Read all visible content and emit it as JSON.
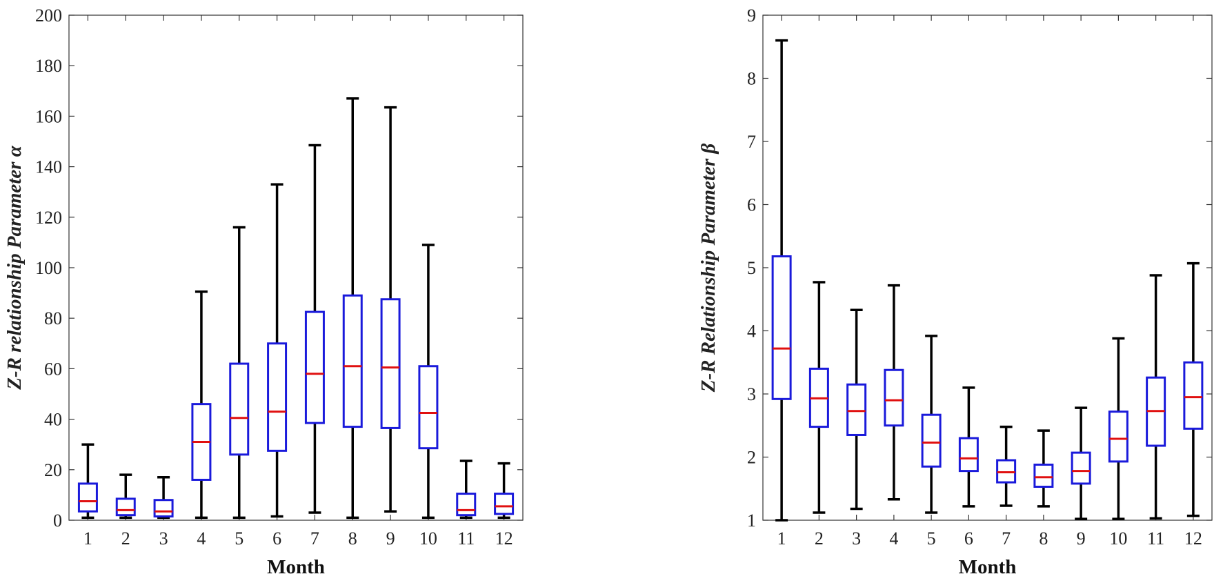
{
  "colors": {
    "box": "#1a1adb",
    "median": "#e01010",
    "whisker": "#000000",
    "axis": "#333333"
  },
  "chart_data": [
    {
      "type": "box",
      "xlabel": "Month",
      "ylabel": "Z-R relationship Parameter α",
      "ylim": [
        0,
        200
      ],
      "yticks": [
        "0",
        "20",
        "40",
        "60",
        "80",
        "100",
        "120",
        "140",
        "160",
        "180",
        "200"
      ],
      "categories": [
        "1",
        "2",
        "3",
        "4",
        "5",
        "6",
        "7",
        "8",
        "9",
        "10",
        "11",
        "12"
      ],
      "boxes": [
        {
          "min": 1,
          "q1": 3.5,
          "median": 7.5,
          "q3": 14.5,
          "max": 30
        },
        {
          "min": 1,
          "q1": 2,
          "median": 4,
          "q3": 8.5,
          "max": 18
        },
        {
          "min": 1,
          "q1": 1.5,
          "median": 3.5,
          "q3": 8,
          "max": 17
        },
        {
          "min": 1,
          "q1": 16,
          "median": 31,
          "q3": 46,
          "max": 90.5
        },
        {
          "min": 1,
          "q1": 26,
          "median": 40.5,
          "q3": 62,
          "max": 116
        },
        {
          "min": 1.5,
          "q1": 27.5,
          "median": 43,
          "q3": 70,
          "max": 133
        },
        {
          "min": 3,
          "q1": 38.5,
          "median": 58,
          "q3": 82.5,
          "max": 148.5
        },
        {
          "min": 1,
          "q1": 37,
          "median": 61,
          "q3": 89,
          "max": 167
        },
        {
          "min": 3.5,
          "q1": 36.5,
          "median": 60.5,
          "q3": 87.5,
          "max": 163.5
        },
        {
          "min": 1,
          "q1": 28.5,
          "median": 42.5,
          "q3": 61,
          "max": 109
        },
        {
          "min": 1,
          "q1": 2,
          "median": 4,
          "q3": 10.5,
          "max": 23.5
        },
        {
          "min": 1,
          "q1": 2.5,
          "median": 5.5,
          "q3": 10.5,
          "max": 22.5
        }
      ]
    },
    {
      "type": "box",
      "xlabel": "Month",
      "ylabel": "Z-R Relationship Parameter β",
      "ylim": [
        1,
        9
      ],
      "yticks": [
        "1",
        "2",
        "3",
        "4",
        "5",
        "6",
        "7",
        "8",
        "9"
      ],
      "categories": [
        "1",
        "2",
        "3",
        "4",
        "5",
        "6",
        "7",
        "8",
        "9",
        "10",
        "11",
        "12"
      ],
      "boxes": [
        {
          "min": 1,
          "q1": 2.92,
          "median": 3.72,
          "q3": 5.18,
          "max": 8.6
        },
        {
          "min": 1.12,
          "q1": 2.48,
          "median": 2.93,
          "q3": 3.4,
          "max": 4.77
        },
        {
          "min": 1.18,
          "q1": 2.35,
          "median": 2.73,
          "q3": 3.15,
          "max": 4.33
        },
        {
          "min": 1.33,
          "q1": 2.5,
          "median": 2.9,
          "q3": 3.38,
          "max": 4.72
        },
        {
          "min": 1.12,
          "q1": 1.85,
          "median": 2.23,
          "q3": 2.67,
          "max": 3.92
        },
        {
          "min": 1.22,
          "q1": 1.78,
          "median": 1.98,
          "q3": 2.3,
          "max": 3.1
        },
        {
          "min": 1.23,
          "q1": 1.6,
          "median": 1.76,
          "q3": 1.95,
          "max": 2.48
        },
        {
          "min": 1.22,
          "q1": 1.53,
          "median": 1.68,
          "q3": 1.88,
          "max": 2.42
        },
        {
          "min": 1.02,
          "q1": 1.58,
          "median": 1.78,
          "q3": 2.07,
          "max": 2.78
        },
        {
          "min": 1.02,
          "q1": 1.93,
          "median": 2.29,
          "q3": 2.72,
          "max": 3.88
        },
        {
          "min": 1.03,
          "q1": 2.18,
          "median": 2.73,
          "q3": 3.26,
          "max": 4.88
        },
        {
          "min": 1.07,
          "q1": 2.45,
          "median": 2.95,
          "q3": 3.5,
          "max": 5.07
        }
      ]
    }
  ]
}
